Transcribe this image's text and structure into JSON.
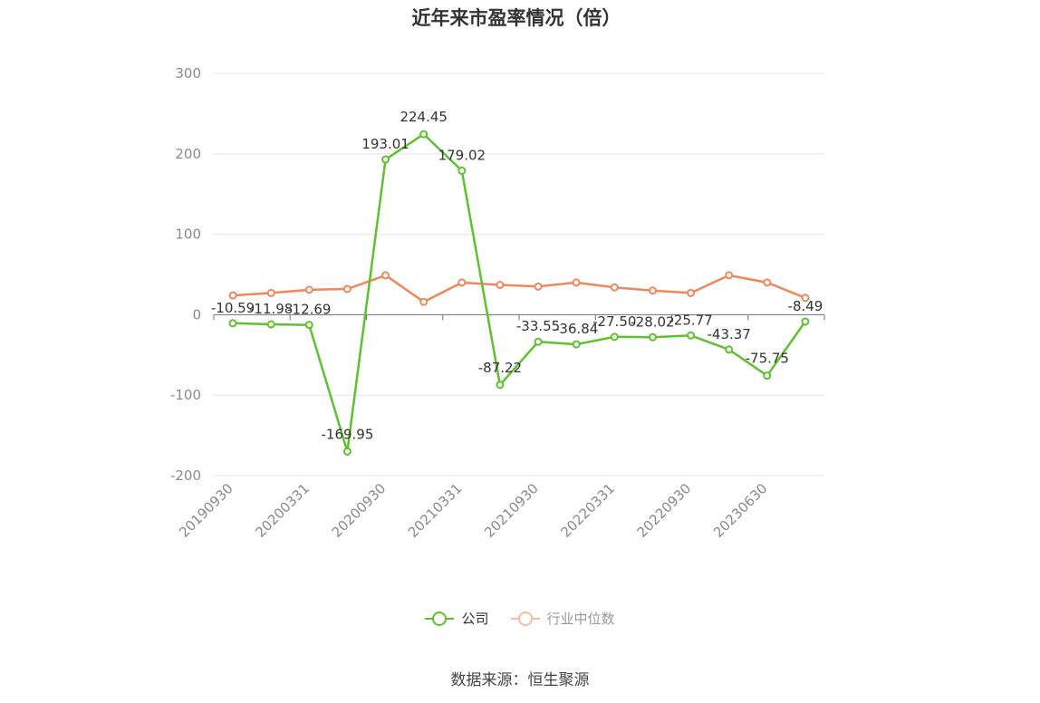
{
  "chart_data": {
    "type": "line",
    "title": "近年来市盈率情况（倍）",
    "x_tick_labels": [
      "20190930",
      "20200331",
      "20200930",
      "20210331",
      "20210930",
      "20220331",
      "20220930",
      "20230630"
    ],
    "ylim": [
      -200,
      300
    ],
    "yticks": [
      -200,
      -100,
      0,
      100,
      200,
      300
    ],
    "grid": true,
    "legend_position": "bottom",
    "series": [
      {
        "name": "公司",
        "color": "#5cc22f",
        "values": [
          -10.59,
          -11.98,
          -12.69,
          -169.95,
          193.01,
          224.45,
          179.02,
          -87.22,
          -33.55,
          -36.84,
          -27.5,
          -28.02,
          -25.77,
          -43.37,
          -75.75,
          -8.49
        ],
        "labels": [
          "-10.59",
          "-11.98",
          "-12.69",
          "-169.95",
          "193.01",
          "224.45",
          "179.02",
          "-87.22",
          "-33.55",
          "-36.84",
          "-27.50",
          "-28.02",
          "-25.77",
          "-43.37",
          "-75.75",
          "-8.49"
        ]
      },
      {
        "name": "行业中位数",
        "color": "#f0875a",
        "legend_color": "#f9b9a3",
        "values": [
          24,
          27,
          31,
          32,
          49,
          16,
          40,
          37,
          35,
          40,
          34,
          30,
          27,
          49,
          40,
          21
        ]
      }
    ]
  },
  "source": "数据来源：恒生聚源"
}
